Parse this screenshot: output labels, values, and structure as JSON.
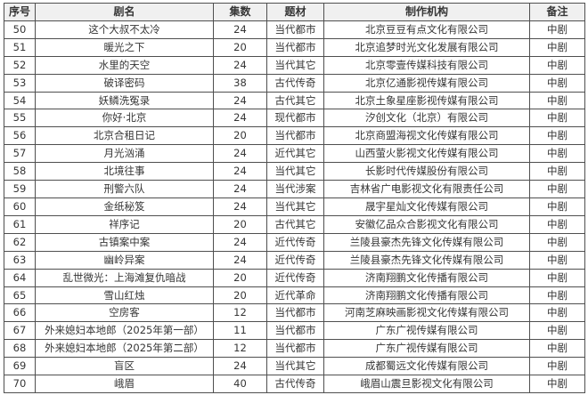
{
  "colors": {
    "border": "#4f4f4f",
    "header_bg": "#f0f0f0",
    "text": "#363636",
    "row_bg": "#ffffff",
    "page_bg": "#ffffff"
  },
  "table": {
    "columns": [
      {
        "key": "index",
        "label": "序号"
      },
      {
        "key": "title",
        "label": "剧名"
      },
      {
        "key": "episodes",
        "label": "集数"
      },
      {
        "key": "genre",
        "label": "题材"
      },
      {
        "key": "producer",
        "label": "制作机构"
      },
      {
        "key": "note",
        "label": "备注"
      }
    ],
    "rows": [
      {
        "index": "50",
        "title": "这个大叔不太冷",
        "episodes": "24",
        "genre": "当代都市",
        "producer": "北京豆豆有点文化有限公司",
        "note": "中剧"
      },
      {
        "index": "51",
        "title": "暖光之下",
        "episodes": "20",
        "genre": "当代都市",
        "producer": "北京追梦时光文化发展有限公司",
        "note": "中剧"
      },
      {
        "index": "52",
        "title": "水里的天空",
        "episodes": "24",
        "genre": "当代其它",
        "producer": "北京零壹传媒科技有限公司",
        "note": "中剧"
      },
      {
        "index": "53",
        "title": "破译密码",
        "episodes": "38",
        "genre": "古代传奇",
        "producer": "北京亿通影视传媒有限公司",
        "note": "中剧"
      },
      {
        "index": "54",
        "title": "妖鳞洗冤录",
        "episodes": "24",
        "genre": "古代其它",
        "producer": "北京土象星座影视传媒有限公司",
        "note": "中剧"
      },
      {
        "index": "55",
        "title": "你好·北京",
        "episodes": "24",
        "genre": "现代都市",
        "producer": "汐创文化（北京）有限公司",
        "note": "中剧"
      },
      {
        "index": "56",
        "title": "北京合租日记",
        "episodes": "20",
        "genre": "当代都市",
        "producer": "北京商盟海视文化传媒有限公司",
        "note": "中剧"
      },
      {
        "index": "57",
        "title": "月光汹涌",
        "episodes": "24",
        "genre": "近代其它",
        "producer": "山西萤火影视文化传媒有限公司",
        "note": "中剧"
      },
      {
        "index": "58",
        "title": "北境往事",
        "episodes": "24",
        "genre": "当代其它",
        "producer": "长影时代传媒股份有限公司",
        "note": "中剧"
      },
      {
        "index": "59",
        "title": "刑警六队",
        "episodes": "24",
        "genre": "当代涉案",
        "producer": "吉林省广电影视文化有限责任公司",
        "note": "中剧"
      },
      {
        "index": "60",
        "title": "金纸秘笈",
        "episodes": "24",
        "genre": "当代其它",
        "producer": "晟宇星灿文化传媒有限公司",
        "note": "中剧"
      },
      {
        "index": "61",
        "title": "祥序记",
        "episodes": "20",
        "genre": "古代其它",
        "producer": "安徽亿品众合影视文化有限公司",
        "note": "中剧"
      },
      {
        "index": "62",
        "title": "古镇案中案",
        "episodes": "24",
        "genre": "近代传奇",
        "producer": "兰陵县豪杰先锋文化传媒有限公司",
        "note": "中剧"
      },
      {
        "index": "63",
        "title": "幽岭异案",
        "episodes": "24",
        "genre": "近代传奇",
        "producer": "兰陵县豪杰先锋文化传媒有限公司",
        "note": "中剧"
      },
      {
        "index": "64",
        "title": "乱世微光：上海滩复仇暗战",
        "episodes": "20",
        "genre": "近代传奇",
        "producer": "济南翔鹏文化传播有限公司",
        "note": "中剧"
      },
      {
        "index": "65",
        "title": "雪山红烛",
        "episodes": "20",
        "genre": "近代革命",
        "producer": "济南翔鹏文化传播有限公司",
        "note": "中剧"
      },
      {
        "index": "66",
        "title": "空房客",
        "episodes": "12",
        "genre": "当代都市",
        "producer": "河南芝麻映画影视文化传媒有限公司",
        "note": "中剧"
      },
      {
        "index": "67",
        "title": "外来媳妇本地郎（2025年第一部）",
        "episodes": "11",
        "genre": "当代都市",
        "producer": "广东广视传媒有限公司",
        "note": "中剧"
      },
      {
        "index": "68",
        "title": "外来媳妇本地郎（2025年第二部）",
        "episodes": "12",
        "genre": "当代都市",
        "producer": "广东广视传媒有限公司",
        "note": "中剧"
      },
      {
        "index": "69",
        "title": "盲区",
        "episodes": "24",
        "genre": "当代其它",
        "producer": "成都蜀远文化传媒有限公司",
        "note": "中剧"
      },
      {
        "index": "70",
        "title": "峨眉",
        "episodes": "40",
        "genre": "古代传奇",
        "producer": "峨眉山震旦影视文化有限公司",
        "note": "中剧"
      }
    ]
  }
}
